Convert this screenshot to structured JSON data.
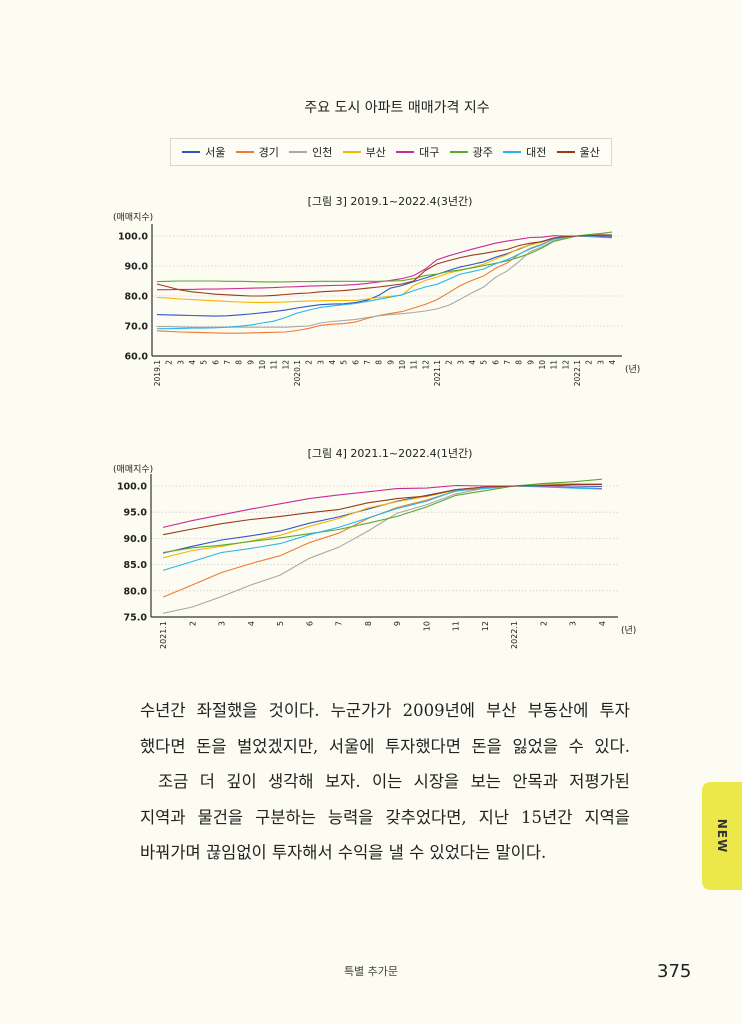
{
  "header": {
    "title": "주요 도시 아파트 매매가격 지수"
  },
  "legend": [
    {
      "name": "서울",
      "color": "#2f55c8"
    },
    {
      "name": "경기",
      "color": "#f07a32"
    },
    {
      "name": "인천",
      "color": "#a8a8a8"
    },
    {
      "name": "부산",
      "color": "#f4b400"
    },
    {
      "name": "대구",
      "color": "#cc2a9a"
    },
    {
      "name": "광주",
      "color": "#5aa832"
    },
    {
      "name": "대전",
      "color": "#2ab6ec"
    },
    {
      "name": "울산",
      "color": "#9a3a1a"
    }
  ],
  "chart_data": [
    {
      "type": "line",
      "title": "[그림 3]  2019.1~2022.4(3년간)",
      "ylabel": "(매매지수)",
      "xlabel": "(년)",
      "ylim": [
        60,
        100
      ],
      "yticks": [
        "60.0",
        "70.0",
        "80.0",
        "90.0",
        "100.0"
      ],
      "grid": "horizontal dotted",
      "categories": [
        "2019.1",
        "2",
        "3",
        "4",
        "5",
        "6",
        "7",
        "8",
        "9",
        "10",
        "11",
        "12",
        "2020.1",
        "2",
        "3",
        "4",
        "5",
        "6",
        "7",
        "8",
        "9",
        "10",
        "11",
        "12",
        "2021.1",
        "2",
        "3",
        "4",
        "5",
        "6",
        "7",
        "8",
        "9",
        "10",
        "11",
        "12",
        "2022.1",
        "2",
        "3",
        "4"
      ],
      "series": [
        {
          "name": "서울",
          "values": [
            73.8,
            73.7,
            73.6,
            73.5,
            73.4,
            73.3,
            73.4,
            73.7,
            74.0,
            74.4,
            74.8,
            75.3,
            76.0,
            76.6,
            77.1,
            77.3,
            77.4,
            77.8,
            78.6,
            80.2,
            82.6,
            83.5,
            84.8,
            86.0,
            87.2,
            88.5,
            89.7,
            90.5,
            91.4,
            92.9,
            94.1,
            95.6,
            97.1,
            98.2,
            99.3,
            99.8,
            100,
            100.1,
            100.0,
            99.9
          ]
        },
        {
          "name": "경기",
          "values": [
            68.4,
            68.2,
            68.0,
            67.9,
            67.8,
            67.7,
            67.6,
            67.6,
            67.7,
            67.8,
            67.9,
            68.0,
            68.5,
            69.2,
            70.2,
            70.6,
            70.8,
            71.3,
            72.5,
            73.5,
            74.2,
            74.8,
            76.0,
            77.2,
            78.8,
            81.1,
            83.5,
            85.2,
            86.7,
            89.2,
            91.0,
            93.8,
            95.9,
            97.3,
            99.0,
            99.7,
            100,
            100.3,
            100.4,
            100.3
          ]
        },
        {
          "name": "인천",
          "values": [
            69.8,
            69.8,
            69.7,
            69.6,
            69.6,
            69.6,
            69.6,
            69.6,
            69.6,
            69.6,
            69.6,
            69.6,
            69.8,
            70.0,
            71.0,
            71.5,
            71.8,
            72.2,
            72.8,
            73.4,
            73.8,
            74.1,
            74.5,
            75.0,
            75.7,
            76.9,
            78.9,
            81.1,
            83.0,
            86.2,
            88.3,
            91.4,
            94.8,
            96.4,
            98.5,
            99.6,
            100,
            100.4,
            100.4,
            100.4
          ]
        },
        {
          "name": "부산",
          "values": [
            79.5,
            79.3,
            79.0,
            78.8,
            78.6,
            78.4,
            78.2,
            78.0,
            77.9,
            77.8,
            77.9,
            78.0,
            78.2,
            78.3,
            78.4,
            78.5,
            78.5,
            78.5,
            79.0,
            79.5,
            79.9,
            80.3,
            83.5,
            85.2,
            86.3,
            87.7,
            88.5,
            89.5,
            90.6,
            92.3,
            93.8,
            95.8,
            97.0,
            98.0,
            99.2,
            99.8,
            100,
            100.2,
            100.3,
            100.3
          ]
        },
        {
          "name": "대구",
          "values": [
            82.1,
            82.1,
            82.2,
            82.2,
            82.3,
            82.3,
            82.4,
            82.5,
            82.6,
            82.7,
            82.8,
            83.0,
            83.1,
            83.3,
            83.4,
            83.5,
            83.6,
            83.8,
            84.2,
            84.7,
            85.2,
            85.8,
            86.8,
            89.0,
            92.1,
            93.4,
            94.5,
            95.6,
            96.6,
            97.6,
            98.3,
            98.9,
            99.5,
            99.6,
            100.1,
            100.0,
            100,
            99.9,
            99.7,
            99.5
          ]
        },
        {
          "name": "광주",
          "values": [
            84.8,
            84.9,
            85.0,
            85.0,
            85.0,
            85.0,
            84.9,
            84.9,
            84.8,
            84.7,
            84.7,
            84.7,
            84.8,
            84.8,
            84.9,
            84.9,
            84.9,
            84.9,
            84.9,
            84.9,
            85.0,
            85.1,
            85.8,
            86.8,
            87.3,
            88.2,
            88.7,
            89.4,
            90.1,
            90.9,
            91.7,
            92.9,
            94.2,
            96.0,
            98.2,
            99.1,
            100,
            100.5,
            100.8,
            101.3
          ]
        },
        {
          "name": "대전",
          "values": [
            69.1,
            69.1,
            69.2,
            69.3,
            69.3,
            69.4,
            69.6,
            69.9,
            70.3,
            71.0,
            71.6,
            72.8,
            74.3,
            75.3,
            76.2,
            76.7,
            77.1,
            77.5,
            78.2,
            78.9,
            79.6,
            80.4,
            81.8,
            83.0,
            83.9,
            85.6,
            87.3,
            88.1,
            89.0,
            90.7,
            92.1,
            93.9,
            95.7,
            97.1,
            99.1,
            99.5,
            100,
            99.8,
            99.6,
            99.4
          ]
        },
        {
          "name": "울산",
          "values": [
            84.0,
            83.0,
            82.0,
            81.4,
            81.0,
            80.6,
            80.4,
            80.2,
            80.0,
            80.0,
            80.2,
            80.5,
            80.8,
            81.0,
            81.4,
            81.6,
            81.8,
            82.2,
            82.6,
            83.0,
            83.5,
            84.0,
            85.0,
            88.5,
            90.7,
            91.8,
            92.8,
            93.6,
            94.2,
            94.9,
            95.5,
            96.8,
            97.6,
            98.1,
            99.3,
            99.8,
            100,
            100.1,
            100.3,
            100.3
          ]
        }
      ]
    },
    {
      "type": "line",
      "title": "[그림 4]  2021.1~2022.4(1년간)",
      "ylabel": "(매매지수)",
      "xlabel": "(년)",
      "ylim": [
        75,
        100
      ],
      "yticks": [
        "75.0",
        "80.0",
        "85.0",
        "90.0",
        "95.0",
        "100.0"
      ],
      "grid": "horizontal dotted",
      "categories": [
        "2021.1",
        "2",
        "3",
        "4",
        "5",
        "6",
        "7",
        "8",
        "9",
        "10",
        "11",
        "12",
        "2022.1",
        "2",
        "3",
        "4"
      ],
      "series": [
        {
          "name": "서울",
          "values": [
            87.2,
            88.5,
            89.7,
            90.5,
            91.4,
            92.9,
            94.1,
            95.6,
            97.1,
            98.2,
            99.3,
            99.8,
            100,
            100.1,
            100.0,
            99.9
          ]
        },
        {
          "name": "경기",
          "values": [
            78.8,
            81.1,
            83.5,
            85.2,
            86.7,
            89.2,
            91.0,
            93.8,
            95.9,
            97.3,
            99.0,
            99.7,
            100,
            100.3,
            100.4,
            100.3
          ]
        },
        {
          "name": "인천",
          "values": [
            75.7,
            76.9,
            78.9,
            81.1,
            83.0,
            86.2,
            88.3,
            91.4,
            94.8,
            96.4,
            98.5,
            99.6,
            100,
            100.4,
            100.4,
            100.4
          ]
        },
        {
          "name": "부산",
          "values": [
            86.3,
            87.7,
            88.5,
            89.5,
            90.6,
            92.3,
            93.8,
            95.8,
            97.0,
            98.0,
            99.2,
            99.8,
            100,
            100.2,
            100.3,
            100.3
          ]
        },
        {
          "name": "대구",
          "values": [
            92.1,
            93.4,
            94.5,
            95.6,
            96.6,
            97.6,
            98.3,
            98.9,
            99.5,
            99.6,
            100.1,
            100.0,
            100,
            99.9,
            99.7,
            99.5
          ]
        },
        {
          "name": "광주",
          "values": [
            87.3,
            88.2,
            88.7,
            89.4,
            90.1,
            90.9,
            91.7,
            92.9,
            94.2,
            96.0,
            98.2,
            99.1,
            100,
            100.5,
            100.8,
            101.3
          ]
        },
        {
          "name": "대전",
          "values": [
            83.9,
            85.6,
            87.3,
            88.1,
            89.0,
            90.7,
            92.1,
            93.9,
            95.7,
            97.1,
            99.1,
            99.5,
            100,
            99.8,
            99.6,
            99.4
          ]
        },
        {
          "name": "울산",
          "values": [
            90.7,
            91.8,
            92.8,
            93.6,
            94.2,
            94.9,
            95.5,
            96.8,
            97.6,
            98.1,
            99.3,
            99.8,
            100,
            100.1,
            100.3,
            100.3
          ]
        }
      ]
    }
  ],
  "body": {
    "lines": [
      "수년간 좌절했을 것이다. 누군가가 2009년에 부산 부동산에 투자",
      "했다면 돈을 벌었겠지만, 서울에 투자했다면 돈을 잃었을 수 있다.",
      "조금 더 깊이 생각해 보자. 이는 시장을 보는 안목과 저평가된",
      "지역과 물건을 구분하는 능력을 갖추었다면, 지난 15년간 지역을",
      "바꿔가며 끊임없이 투자해서 수익을 낼 수 있었다는 말이다."
    ]
  },
  "footer": {
    "section": "특별 추가문",
    "page_number": "375"
  },
  "side_tab": {
    "label": "NEW",
    "color": "#ece84a"
  }
}
